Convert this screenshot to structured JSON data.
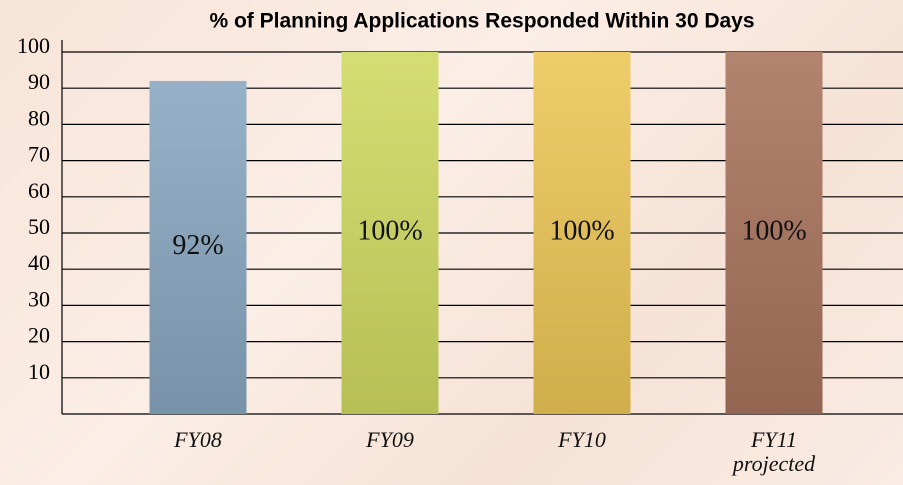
{
  "chart_data": {
    "type": "bar",
    "title": "% of Planning Applications Responded Within 30 Days",
    "categories": [
      "FY08",
      "FY09",
      "FY10",
      "FY11 projected"
    ],
    "values": [
      92,
      100,
      100,
      100
    ],
    "value_labels": [
      "92%",
      "100%",
      "100%",
      "100%"
    ],
    "colors": [
      "#88a6c0",
      "#cfd960",
      "#ecc655",
      "#a8735c"
    ],
    "ylim": [
      0,
      100
    ],
    "yticks": [
      10,
      20,
      30,
      40,
      50,
      60,
      70,
      80,
      90,
      100
    ],
    "grid": true
  }
}
